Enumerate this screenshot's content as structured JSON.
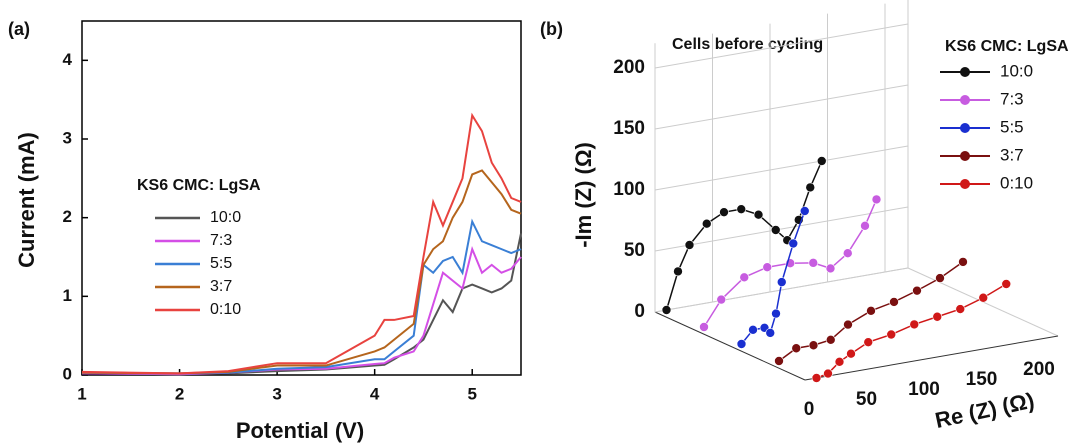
{
  "chart_data": [
    {
      "type": "line",
      "label": "(a)",
      "x_label": "Potential (V)",
      "y_label": "Current (mA)",
      "legend_title": "KS6 CMC: LgSA",
      "x": [
        1,
        2,
        2.5,
        3,
        3.5,
        4,
        4.1,
        4.2,
        4.4,
        4.5,
        4.6,
        4.7,
        4.8,
        4.9,
        5,
        5.1,
        5.2,
        5.3,
        5.4,
        5.5
      ],
      "xlim": [
        1,
        5.5
      ],
      "xticks": [
        1,
        2,
        3,
        4,
        5
      ],
      "ylim": [
        0,
        4.5
      ],
      "yticks": [
        0,
        1,
        2,
        3,
        4
      ],
      "series": [
        {
          "name": "10:0",
          "color": "#555555",
          "values": [
            0.02,
            0.01,
            0.02,
            0.05,
            0.07,
            0.12,
            0.13,
            0.2,
            0.35,
            0.45,
            0.7,
            0.95,
            0.8,
            1.1,
            1.15,
            1.1,
            1.05,
            1.1,
            1.2,
            1.8
          ]
        },
        {
          "name": "7:3",
          "color": "#d44fe6",
          "values": [
            0.02,
            0.01,
            0.03,
            0.07,
            0.08,
            0.14,
            0.15,
            0.22,
            0.3,
            0.5,
            0.9,
            1.3,
            1.2,
            1.1,
            1.6,
            1.3,
            1.4,
            1.3,
            1.35,
            1.5
          ]
        },
        {
          "name": "5:5",
          "color": "#3a7fd5",
          "values": [
            0.03,
            0.02,
            0.03,
            0.08,
            0.1,
            0.2,
            0.2,
            0.3,
            0.5,
            1.4,
            1.3,
            1.45,
            1.5,
            1.3,
            1.95,
            1.7,
            1.65,
            1.6,
            1.55,
            1.6
          ]
        },
        {
          "name": "3:7",
          "color": "#b5651d",
          "values": [
            0.03,
            0.02,
            0.04,
            0.12,
            0.12,
            0.3,
            0.35,
            0.45,
            0.65,
            1.4,
            1.6,
            1.7,
            2.0,
            2.2,
            2.55,
            2.6,
            2.45,
            2.3,
            2.1,
            2.05
          ]
        },
        {
          "name": "0:10",
          "color": "#e8433f",
          "values": [
            0.04,
            0.02,
            0.05,
            0.15,
            0.15,
            0.5,
            0.7,
            0.7,
            0.75,
            1.5,
            2.2,
            1.9,
            2.2,
            2.5,
            3.3,
            3.1,
            2.7,
            2.5,
            2.25,
            2.2
          ]
        }
      ]
    },
    {
      "type": "line3d",
      "label": "(b)",
      "annotation": "Cells before cycling",
      "x_label": "Re (Z) (Ω)",
      "y_label": "-Im (Z) (Ω)",
      "legend_title": "KS6 CMC: LgSA",
      "xlim": [
        0,
        220
      ],
      "xticks": [
        0,
        50,
        100,
        150,
        200
      ],
      "ylim": [
        0,
        220
      ],
      "yticks": [
        0,
        50,
        100,
        150,
        200
      ],
      "series": [
        {
          "name": "10:0",
          "color": "#111111",
          "x": [
            10,
            20,
            30,
            45,
            60,
            75,
            90,
            105,
            115,
            125,
            135,
            145
          ],
          "values": [
            0,
            30,
            50,
            65,
            72,
            72,
            65,
            50,
            40,
            55,
            80,
            100
          ]
        },
        {
          "name": "7:3",
          "color": "#c75ce0",
          "x": [
            10,
            25,
            45,
            65,
            85,
            105,
            120,
            135,
            150,
            160
          ],
          "values": [
            0,
            20,
            35,
            40,
            40,
            37,
            30,
            40,
            60,
            80
          ]
        },
        {
          "name": "5:5",
          "color": "#1a2fd0",
          "x": [
            10,
            20,
            30,
            35,
            40,
            45,
            55,
            65
          ],
          "values": [
            0,
            10,
            10,
            5,
            20,
            45,
            75,
            100
          ]
        },
        {
          "name": "3:7",
          "color": "#7a1010",
          "x": [
            10,
            25,
            40,
            55,
            70,
            90,
            110,
            130,
            150,
            170
          ],
          "values": [
            0,
            8,
            8,
            10,
            20,
            28,
            32,
            38,
            45,
            55
          ]
        },
        {
          "name": "0:10",
          "color": "#d01818",
          "x": [
            10,
            20,
            30,
            40,
            55,
            75,
            95,
            115,
            135,
            155,
            175
          ],
          "values": [
            0,
            2,
            10,
            15,
            22,
            25,
            30,
            33,
            36,
            42,
            50
          ]
        }
      ]
    }
  ]
}
